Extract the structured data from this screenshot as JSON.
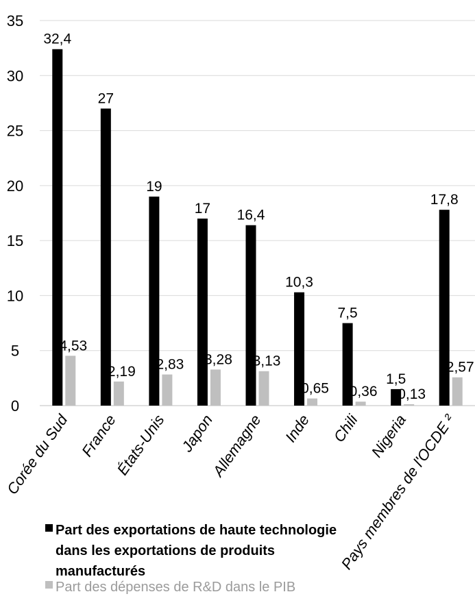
{
  "chart_data": {
    "type": "bar",
    "categories": [
      "Corée du Sud",
      "France",
      "États-Unis",
      "Japon",
      "Allemagne",
      "Inde",
      "Chili",
      "Nigeria",
      "Pays membres de l'OCDE ²"
    ],
    "series": [
      {
        "name": "Part des exportations de haute technologie dans les exportations de produits manufacturés",
        "color": "#000000",
        "values": [
          32.4,
          27,
          19,
          17,
          16.4,
          10.3,
          7.5,
          1.5,
          17.8
        ],
        "labels": [
          "32,4",
          "27",
          "19",
          "17",
          "16,4",
          "10,3",
          "7,5",
          "1,5",
          "17,8"
        ]
      },
      {
        "name": "Part des dépenses de R&D dans le PIB",
        "color": "#bfbfbf",
        "values": [
          4.53,
          2.19,
          2.83,
          3.28,
          3.13,
          0.65,
          0.36,
          0.13,
          2.57
        ],
        "labels": [
          "4,53",
          "2,19",
          "2,83",
          "3,28",
          "3,13",
          "0,65",
          "0,36",
          "0,13",
          "2,57"
        ]
      }
    ],
    "ylim": [
      0,
      35
    ],
    "yticks": [
      0,
      5,
      10,
      15,
      20,
      25,
      30,
      35
    ],
    "ytick_labels": [
      "0",
      "5",
      "10",
      "15",
      "20",
      "25",
      "30",
      "35"
    ],
    "grid": true,
    "legend_position": "bottom-left"
  }
}
